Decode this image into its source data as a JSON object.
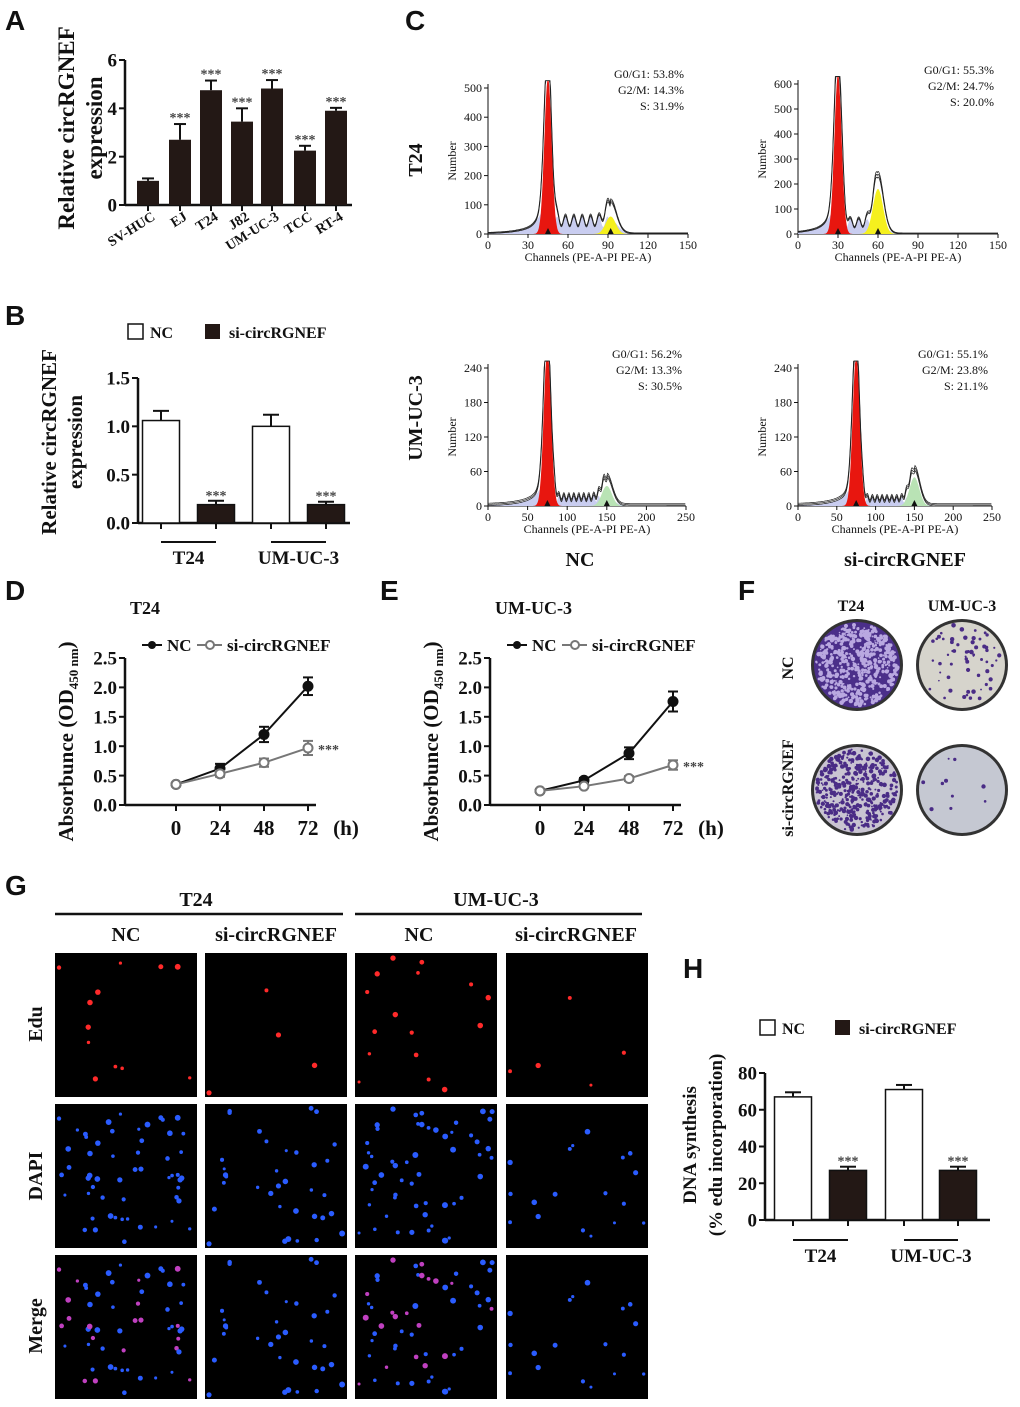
{
  "panels": {
    "A": "A",
    "B": "B",
    "C": "C",
    "D": "D",
    "E": "E",
    "F": "F",
    "G": "G",
    "H": "H"
  },
  "colors": {
    "bar_dark": "#231815",
    "bar_light": "#ffffff",
    "g1_fill": "#e8160f",
    "g2_fill_T24_si": "#f5f01e",
    "g2_fill_UM": "#b9e3b5",
    "s_fill": "#c9cdf0",
    "edu": "#ff2a2a",
    "dapi": "#2a5cff"
  },
  "stars": "***",
  "chart_data": [
    {
      "id": "A",
      "type": "bar",
      "ylabel": [
        "Relative circRGNEF",
        "expression"
      ],
      "categories": [
        "SV-HUC",
        "EJ",
        "T24",
        "J82",
        "UM-UC-3",
        "TCC",
        "RT-4"
      ],
      "values": [
        1.0,
        2.7,
        4.75,
        3.45,
        4.82,
        2.25,
        3.9
      ],
      "errors": [
        0.1,
        0.65,
        0.4,
        0.55,
        0.35,
        0.2,
        0.12
      ],
      "significance": [
        "",
        "***",
        "***",
        "***",
        "***",
        "***",
        "***"
      ],
      "ylim": [
        0,
        6
      ],
      "yticks": [
        "0",
        "2",
        "4",
        "6"
      ]
    },
    {
      "id": "B",
      "type": "bar",
      "ylabel": [
        "Relative circRGNEF",
        "expression"
      ],
      "legend": [
        "NC",
        "si-circRGNEF"
      ],
      "categories": [
        "T24",
        "UM-UC-3"
      ],
      "series": [
        {
          "name": "NC",
          "values": [
            1.06,
            1.0
          ],
          "errors": [
            0.1,
            0.12
          ]
        },
        {
          "name": "si-circRGNEF",
          "values": [
            0.19,
            0.19
          ],
          "errors": [
            0.04,
            0.03
          ],
          "significance": "***"
        }
      ],
      "ylim": [
        0,
        1.5
      ],
      "yticks": [
        "0.0",
        "0.5",
        "1.0",
        "1.5"
      ]
    },
    {
      "id": "C",
      "type": "area",
      "xlabel": "Channels (PE-A-PI PE-A)",
      "ylabel": "Number",
      "row_labels": [
        "T24",
        "UM-UC-3"
      ],
      "col_labels": [
        "NC",
        "si-circRGNEF"
      ],
      "plots": [
        {
          "row": "T24",
          "col": "NC",
          "g0g1": "G0/G1: 53.8%",
          "g2m": "G2/M: 14.3%",
          "s": "S: 31.9%",
          "xlim": [
            0,
            150
          ],
          "xticks": [
            "0",
            "30",
            "60",
            "90",
            "120",
            "150"
          ],
          "ylim": [
            0,
            500
          ],
          "yticks": [
            "0",
            "100",
            "200",
            "300",
            "400",
            "500"
          ],
          "g1_peak": [
            45,
            540
          ],
          "g2_peak": [
            92,
            60
          ],
          "s_level": 60
        },
        {
          "row": "T24",
          "col": "si-circRGNEF",
          "g0g1": "G0/G1: 55.3%",
          "g2m": "G2/M: 24.7%",
          "s": "S: 20.0%",
          "xlim": [
            0,
            150
          ],
          "xticks": [
            "0",
            "30",
            "60",
            "90",
            "120",
            "150"
          ],
          "ylim": [
            0,
            600
          ],
          "yticks": [
            "0",
            "100",
            "200",
            "300",
            "400",
            "500",
            "600"
          ],
          "g1_peak": [
            30,
            640
          ],
          "g2_peak": [
            60,
            180
          ],
          "s_level": 60
        },
        {
          "row": "UM-UC-3",
          "col": "NC",
          "g0g1": "G0/G1: 56.2%",
          "g2m": "G2/M: 13.3%",
          "s": "S: 30.5%",
          "xlim": [
            0,
            250
          ],
          "xticks": [
            "0",
            "50",
            "100",
            "150",
            "200",
            "250"
          ],
          "ylim": [
            0,
            240
          ],
          "yticks": [
            "0",
            "60",
            "120",
            "180",
            "240"
          ],
          "g1_peak": [
            75,
            275
          ],
          "g2_peak": [
            150,
            35
          ],
          "s_level": 18
        },
        {
          "row": "UM-UC-3",
          "col": "si-circRGNEF",
          "g0g1": "G0/G1: 55.1%",
          "g2m": "G2/M: 23.8%",
          "s": "S: 21.1%",
          "xlim": [
            0,
            250
          ],
          "xticks": [
            "0",
            "50",
            "100",
            "150",
            "200",
            "250"
          ],
          "ylim": [
            0,
            240
          ],
          "yticks": [
            "0",
            "60",
            "120",
            "180",
            "240"
          ],
          "g1_peak": [
            75,
            265
          ],
          "g2_peak": [
            150,
            50
          ],
          "s_level": 15
        }
      ]
    },
    {
      "id": "D",
      "type": "line",
      "title": "T24",
      "ylabel": "Absorbunce (OD",
      "ylabel_sub": "450 nm",
      "ylabel_end": ")",
      "x": [
        0,
        24,
        48,
        72
      ],
      "xticks": [
        "0",
        "24",
        "48",
        "72"
      ],
      "xunit": "(h)",
      "ylim": [
        0,
        2.5
      ],
      "yticks": [
        "0.0",
        "0.5",
        "1.0",
        "1.5",
        "2.0",
        "2.5"
      ],
      "series": [
        {
          "name": "NC",
          "values": [
            0.35,
            0.62,
            1.2,
            2.02
          ],
          "errors": [
            0.03,
            0.08,
            0.13,
            0.15
          ]
        },
        {
          "name": "si-circRGNEF",
          "values": [
            0.35,
            0.53,
            0.72,
            0.97
          ],
          "errors": [
            0.03,
            0.05,
            0.07,
            0.12
          ],
          "significance": "***"
        }
      ]
    },
    {
      "id": "E",
      "type": "line",
      "title": "UM-UC-3",
      "ylabel": "Absorbunce (OD",
      "ylabel_sub": "450 nm",
      "ylabel_end": ")",
      "x": [
        0,
        24,
        48,
        72
      ],
      "xticks": [
        "0",
        "24",
        "48",
        "72"
      ],
      "xunit": "(h)",
      "ylim": [
        0,
        2.5
      ],
      "yticks": [
        "0.0",
        "0.5",
        "1.0",
        "1.5",
        "2.0",
        "2.5"
      ],
      "series": [
        {
          "name": "NC",
          "values": [
            0.24,
            0.42,
            0.88,
            1.76
          ],
          "errors": [
            0.03,
            0.04,
            0.1,
            0.17
          ]
        },
        {
          "name": "si-circRGNEF",
          "values": [
            0.24,
            0.32,
            0.45,
            0.68
          ],
          "errors": [
            0.02,
            0.03,
            0.04,
            0.08
          ],
          "significance": "***"
        }
      ]
    },
    {
      "id": "H",
      "type": "bar",
      "ylabel": [
        "DNA synthesis",
        "(% edu incorporation)"
      ],
      "legend": [
        "NC",
        "si-circRGNEF"
      ],
      "categories": [
        "T24",
        "UM-UC-3"
      ],
      "series": [
        {
          "name": "NC",
          "values": [
            67,
            71
          ],
          "errors": [
            2.5,
            2.5
          ]
        },
        {
          "name": "si-circRGNEF",
          "values": [
            27,
            27
          ],
          "errors": [
            2,
            2
          ],
          "significance": "***"
        }
      ],
      "ylim": [
        0,
        80
      ],
      "yticks": [
        "0",
        "20",
        "40",
        "60",
        "80"
      ]
    }
  ],
  "F": {
    "col_labels": [
      "T24",
      "UM-UC-3"
    ],
    "row_labels": [
      "NC",
      "si-circRGNEF"
    ]
  },
  "G": {
    "groups": [
      "T24",
      "UM-UC-3"
    ],
    "col_labels": [
      "NC",
      "si-circRGNEF",
      "NC",
      "si-circRGNEF"
    ],
    "row_labels": [
      "Edu",
      "DAPI",
      "Merge"
    ]
  }
}
